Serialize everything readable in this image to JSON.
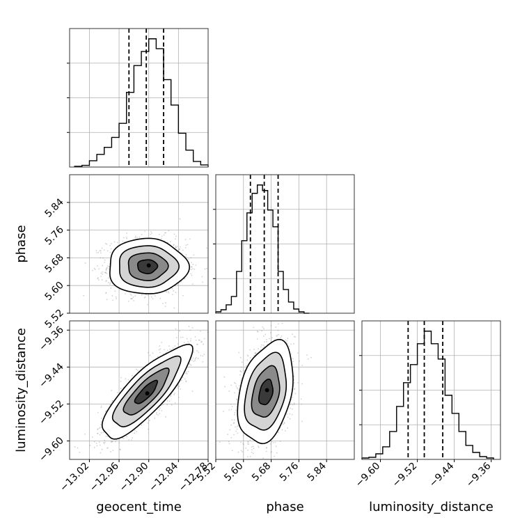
{
  "chart_data": {
    "type": "corner",
    "title": "",
    "parameters": [
      "geocent_time",
      "phase",
      "luminosity_distance"
    ],
    "axis_labels": {
      "geocent_time": "geocent_time",
      "phase": "phase",
      "luminosity_distance": "luminosity_distance"
    },
    "ranges": {
      "geocent_time": [
        -13.06,
        -12.78
      ],
      "phase": [
        5.52,
        5.92
      ],
      "luminosity_distance": [
        -9.64,
        -9.34
      ]
    },
    "ticks": {
      "geocent_time": [
        -13.02,
        -12.96,
        -12.9,
        -12.84,
        -12.78
      ],
      "phase": [
        5.52,
        5.6,
        5.68,
        5.76,
        5.84
      ],
      "luminosity_distance": [
        -9.6,
        -9.52,
        -9.44,
        -9.36
      ]
    },
    "tick_labels": {
      "geocent_time": [
        "−13.02",
        "−12.96",
        "−12.90",
        "−12.84",
        "−12.78"
      ],
      "phase_x": [
        "5.52",
        "5.60",
        "5.68",
        "5.76",
        "5.84"
      ],
      "phase_y": [
        "5.52",
        "5.60",
        "5.68",
        "5.76",
        "5.84"
      ],
      "luminosity_distance_x": [
        "−9.60",
        "−9.52",
        "−9.44",
        "−9.36"
      ],
      "luminosity_distance_y": [
        "−9.60",
        "−9.52",
        "−9.44",
        "−9.36"
      ]
    },
    "quantiles": {
      "geocent_time": [
        -12.94,
        -12.905,
        -12.87
      ],
      "phase": [
        5.62,
        5.66,
        5.7
      ],
      "luminosity_distance": [
        -9.54,
        -9.505,
        -9.465
      ]
    },
    "histograms": {
      "geocent_time": {
        "bin_edges": [
          -13.05,
          -13.035,
          -13.02,
          -13.005,
          -12.99,
          -12.975,
          -12.96,
          -12.945,
          -12.93,
          -12.915,
          -12.9,
          -12.885,
          -12.87,
          -12.855,
          -12.84,
          -12.825,
          -12.81,
          -12.795,
          -12.78
        ],
        "counts": [
          0.005,
          0.012,
          0.045,
          0.09,
          0.14,
          0.21,
          0.31,
          0.53,
          0.72,
          0.82,
          0.91,
          0.84,
          0.62,
          0.44,
          0.24,
          0.12,
          0.04,
          0.015
        ]
      },
      "phase": {
        "bin_edges": [
          5.52,
          5.535,
          5.55,
          5.565,
          5.58,
          5.595,
          5.61,
          5.625,
          5.64,
          5.655,
          5.67,
          5.685,
          5.7,
          5.715,
          5.73,
          5.745,
          5.76,
          5.775,
          5.79
        ],
        "counts": [
          0.01,
          0.025,
          0.06,
          0.12,
          0.3,
          0.52,
          0.72,
          0.86,
          0.92,
          0.88,
          0.74,
          0.62,
          0.3,
          0.17,
          0.08,
          0.03,
          0.01,
          0.0
        ]
      },
      "luminosity_distance": {
        "bin_edges": [
          -9.64,
          -9.625,
          -9.61,
          -9.595,
          -9.58,
          -9.565,
          -9.55,
          -9.535,
          -9.52,
          -9.505,
          -9.49,
          -9.475,
          -9.46,
          -9.445,
          -9.43,
          -9.415,
          -9.4,
          -9.385,
          -9.37,
          -9.355
        ],
        "counts": [
          0.01,
          0.015,
          0.04,
          0.09,
          0.2,
          0.38,
          0.55,
          0.68,
          0.83,
          0.92,
          0.83,
          0.72,
          0.46,
          0.33,
          0.2,
          0.1,
          0.05,
          0.02,
          0.01
        ]
      }
    },
    "pairs": [
      {
        "x": "geocent_time",
        "y": "phase",
        "center": [
          -12.903,
          5.655
        ],
        "sigma": [
          0.04,
          0.04
        ],
        "correlation": 0.0,
        "peak": [
          -12.9,
          5.658
        ]
      },
      {
        "x": "geocent_time",
        "y": "luminosity_distance",
        "center": [
          -12.905,
          -9.495
        ],
        "sigma": [
          0.045,
          0.05
        ],
        "correlation": 0.82,
        "peak": [
          -12.903,
          -9.497
        ]
      },
      {
        "x": "phase",
        "y": "luminosity_distance",
        "center": [
          5.665,
          -9.495
        ],
        "sigma": [
          0.04,
          0.055
        ],
        "correlation": 0.32,
        "peak": [
          5.668,
          -9.49
        ]
      }
    ],
    "contour_sigma_levels": [
      0.5,
      1.0,
      1.5,
      2.0
    ],
    "grid": true,
    "legend": "none"
  }
}
